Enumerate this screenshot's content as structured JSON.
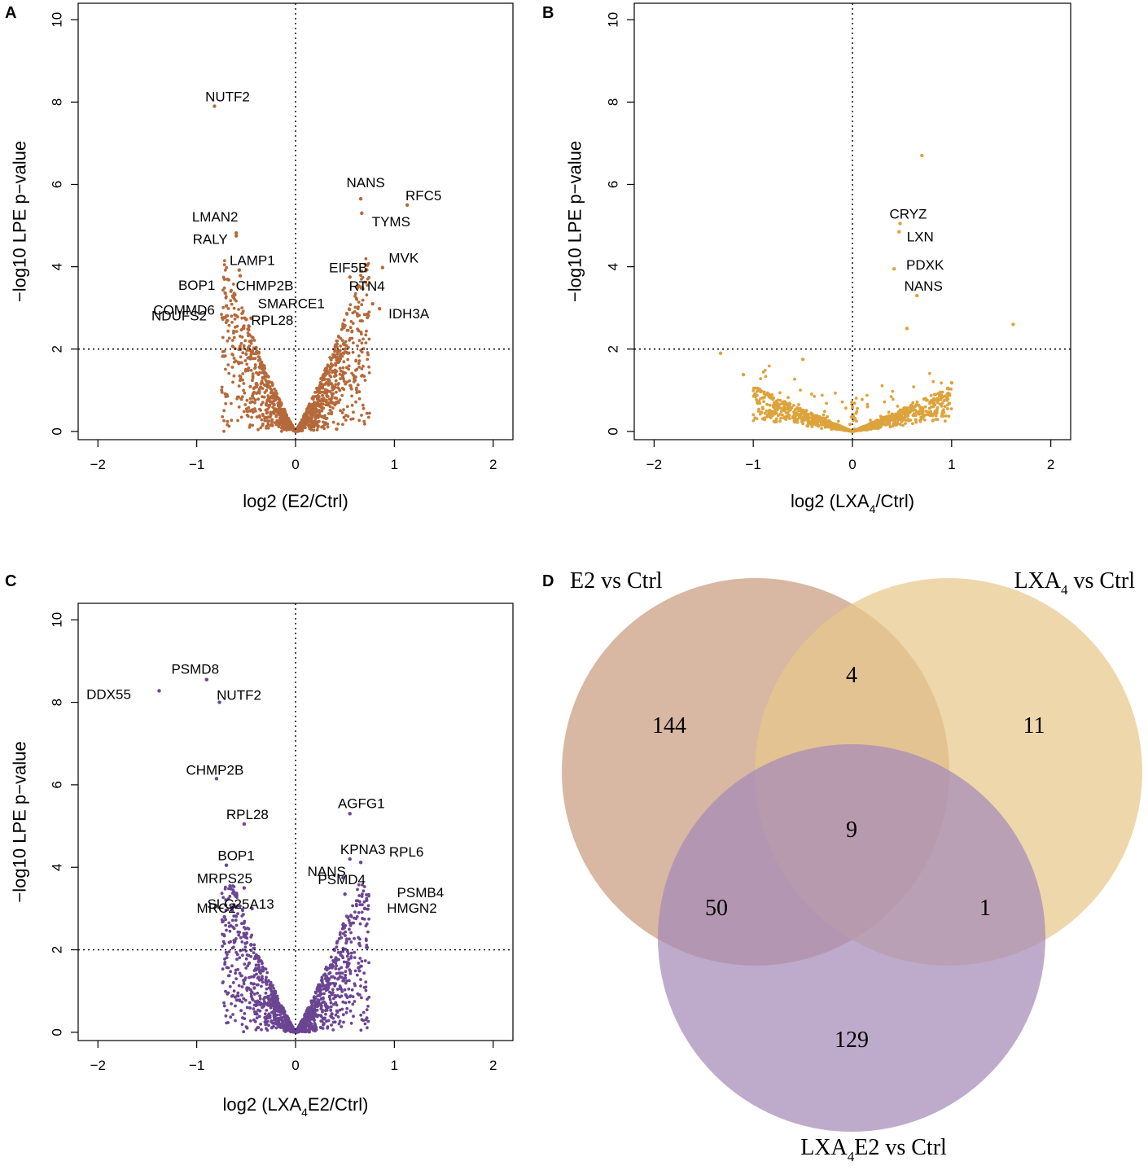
{
  "panels": [
    {
      "id": "A",
      "letter": "A",
      "xlabel": "log2 (E2/Ctrl)",
      "xlabel_parts": [
        {
          "t": "log2 (E2/Ctrl)",
          "sub": false
        }
      ],
      "ylabel": "−log10 LPE p−value",
      "xticks": [
        "−2",
        "−1",
        "0",
        "1",
        "2"
      ],
      "yticks": [
        "0",
        "2",
        "4",
        "6",
        "8",
        "10"
      ],
      "color": "#B5693A",
      "labels": [
        {
          "text": "NUTF2",
          "x": -0.82,
          "y": 7.9
        },
        {
          "text": "NANS",
          "x": 0.66,
          "y": 5.65
        },
        {
          "text": "RFC5",
          "x": 1.13,
          "y": 5.5
        },
        {
          "text": "TYMS",
          "x": 0.67,
          "y": 5.3
        },
        {
          "text": "LMAN2",
          "x": -0.6,
          "y": 4.82
        },
        {
          "text": "RALY",
          "x": -0.6,
          "y": 4.75
        },
        {
          "text": "MVK",
          "x": 0.88,
          "y": 3.98
        },
        {
          "text": "EIF5B",
          "x": 0.55,
          "y": 3.75
        },
        {
          "text": "LAMP1",
          "x": -0.57,
          "y": 3.92
        },
        {
          "text": "CHMP2B",
          "x": -0.56,
          "y": 3.78
        },
        {
          "text": "BOP1",
          "x": -0.72,
          "y": 3.7
        },
        {
          "text": "SMARCE1",
          "x": -0.62,
          "y": 3.35
        },
        {
          "text": "RTN4",
          "x": 0.78,
          "y": 3.1
        },
        {
          "text": "COMMD6",
          "x": -0.7,
          "y": 3.05
        },
        {
          "text": "NDUFS2",
          "x": -0.7,
          "y": 2.8
        },
        {
          "text": "RPL28",
          "x": -0.45,
          "y": 2.75
        },
        {
          "text": "IDH3A",
          "x": 0.85,
          "y": 2.98
        }
      ]
    },
    {
      "id": "B",
      "letter": "B",
      "xlabel": "log2 (LXA4/Ctrl)",
      "xlabel_parts": [
        {
          "t": "log2 (LXA",
          "sub": false
        },
        {
          "t": "4",
          "sub": true
        },
        {
          "t": "/Ctrl)",
          "sub": false
        }
      ],
      "ylabel": "−log10 LPE p−value",
      "xticks": [
        "−2",
        "−1",
        "0",
        "1",
        "2"
      ],
      "yticks": [
        "0",
        "2",
        "4",
        "6",
        "8",
        "10"
      ],
      "color": "#DDA33C",
      "labels": [
        {
          "text": "CRYZ",
          "x": 0.48,
          "y": 5.05
        },
        {
          "text": "LXN",
          "x": 0.47,
          "y": 4.85
        },
        {
          "text": "PDXK",
          "x": 0.42,
          "y": 3.95
        },
        {
          "text": "NANS",
          "x": 0.65,
          "y": 3.3
        }
      ]
    },
    {
      "id": "C",
      "letter": "C",
      "xlabel": "log2 (LXA4E2/Ctrl)",
      "xlabel_parts": [
        {
          "t": "log2 (LXA",
          "sub": false
        },
        {
          "t": "4",
          "sub": true
        },
        {
          "t": "E2/Ctrl)",
          "sub": false
        }
      ],
      "ylabel": "−log10 LPE p−value",
      "xticks": [
        "−2",
        "−1",
        "0",
        "1",
        "2"
      ],
      "yticks": [
        "0",
        "2",
        "4",
        "6",
        "8",
        "10"
      ],
      "color": "#6B4592",
      "labels": [
        {
          "text": "PSMD8",
          "x": -0.9,
          "y": 8.55
        },
        {
          "text": "DDX55",
          "x": -1.38,
          "y": 8.28
        },
        {
          "text": "NUTF2",
          "x": -0.77,
          "y": 8.0
        },
        {
          "text": "CHMP2B",
          "x": -0.8,
          "y": 6.15
        },
        {
          "text": "AGFG1",
          "x": 0.55,
          "y": 5.3
        },
        {
          "text": "RPL28",
          "x": -0.52,
          "y": 5.05
        },
        {
          "text": "KPNA3",
          "x": 0.55,
          "y": 4.2
        },
        {
          "text": "BOP1",
          "x": -0.7,
          "y": 4.05
        },
        {
          "text": "NANS",
          "x": 0.48,
          "y": 3.75
        },
        {
          "text": "RPL6",
          "x": 0.66,
          "y": 4.12
        },
        {
          "text": "MRPS25",
          "x": -0.52,
          "y": 3.5
        },
        {
          "text": "PSMD4",
          "x": 0.5,
          "y": 3.35
        },
        {
          "text": "PSMB4",
          "x": 0.72,
          "y": 3.2
        },
        {
          "text": "SLC25A13",
          "x": -0.44,
          "y": 3.0
        },
        {
          "text": "HMGN2",
          "x": 0.7,
          "y": 3.0
        },
        {
          "text": "MRC2",
          "x": -0.72,
          "y": 2.8
        }
      ]
    }
  ],
  "venn": {
    "letter": "D",
    "sets": [
      {
        "name": "E2 vs Ctrl",
        "parts": [
          {
            "t": "E2 vs Ctrl",
            "sub": false
          }
        ],
        "color": "#C99B7F"
      },
      {
        "name": "LXA4 vs Ctrl",
        "parts": [
          {
            "t": "LXA",
            "sub": false
          },
          {
            "t": "4",
            "sub": true
          },
          {
            "t": " vs Ctrl",
            "sub": false
          }
        ],
        "color": "#E9C78C"
      },
      {
        "name": "LXA4E2 vs Ctrl",
        "parts": [
          {
            "t": "LXA",
            "sub": false
          },
          {
            "t": "4",
            "sub": true
          },
          {
            "t": "E2 vs Ctrl",
            "sub": false
          }
        ],
        "color": "#A58BB8"
      }
    ],
    "counts": {
      "e2_only": "144",
      "lxa4_only": "11",
      "lxa4e2_only": "129",
      "e2_lxa4": "4",
      "e2_lxa4e2": "50",
      "lxa4_lxa4e2": "1",
      "all_three": "9"
    }
  },
  "chart_data": [
    {
      "type": "scatter",
      "title": "A",
      "xlabel": "log2 (E2/Ctrl)",
      "ylabel": "−log10 LPE p−value",
      "xlim": [
        -2.2,
        2.2
      ],
      "ylim": [
        -0.2,
        10.4
      ],
      "threshold_y": 2,
      "threshold_x": 0,
      "annotated_points": [
        {
          "gene": "NUTF2",
          "x": -0.82,
          "y": 7.9
        },
        {
          "gene": "NANS",
          "x": 0.66,
          "y": 5.65
        },
        {
          "gene": "RFC5",
          "x": 1.13,
          "y": 5.5
        },
        {
          "gene": "TYMS",
          "x": 0.67,
          "y": 5.3
        },
        {
          "gene": "LMAN2",
          "x": -0.6,
          "y": 4.82
        },
        {
          "gene": "RALY",
          "x": -0.6,
          "y": 4.75
        },
        {
          "gene": "MVK",
          "x": 0.88,
          "y": 3.98
        },
        {
          "gene": "EIF5B",
          "x": 0.55,
          "y": 3.75
        },
        {
          "gene": "LAMP1",
          "x": -0.57,
          "y": 3.92
        },
        {
          "gene": "CHMP2B",
          "x": -0.56,
          "y": 3.78
        },
        {
          "gene": "BOP1",
          "x": -0.72,
          "y": 3.7
        },
        {
          "gene": "SMARCE1",
          "x": -0.62,
          "y": 3.35
        },
        {
          "gene": "RTN4",
          "x": 0.78,
          "y": 3.1
        },
        {
          "gene": "COMMD6",
          "x": -0.7,
          "y": 3.05
        },
        {
          "gene": "NDUFS2",
          "x": -0.7,
          "y": 2.8
        },
        {
          "gene": "RPL28",
          "x": -0.45,
          "y": 2.75
        },
        {
          "gene": "IDH3A",
          "x": 0.85,
          "y": 2.98
        }
      ],
      "background_cloud": {
        "spread_x": 0.75,
        "max_y": 4.2,
        "n": 1400,
        "seed": 11
      }
    },
    {
      "type": "scatter",
      "title": "B",
      "xlabel": "log2 (LXA4/Ctrl)",
      "ylabel": "−log10 LPE p−value",
      "xlim": [
        -2.2,
        2.2
      ],
      "ylim": [
        -0.2,
        10.4
      ],
      "threshold_y": 2,
      "threshold_x": 0,
      "annotated_points": [
        {
          "gene": "CRYZ",
          "x": 0.48,
          "y": 5.05
        },
        {
          "gene": "LXN",
          "x": 0.47,
          "y": 4.85
        },
        {
          "gene": "PDXK",
          "x": 0.42,
          "y": 3.95
        },
        {
          "gene": "NANS",
          "x": 0.65,
          "y": 3.3
        }
      ],
      "extra_points": [
        {
          "x": 0.7,
          "y": 6.7
        },
        {
          "x": 1.62,
          "y": 2.6
        },
        {
          "x": -1.33,
          "y": 1.9
        },
        {
          "x": -1.1,
          "y": 1.38
        },
        {
          "x": 0.55,
          "y": 2.5
        },
        {
          "x": -0.5,
          "y": 1.75
        },
        {
          "x": 1.0,
          "y": 1.18
        }
      ],
      "background_cloud": {
        "spread_x": 1.0,
        "max_y": 2.2,
        "n": 1400,
        "seed": 23,
        "flat": true
      }
    },
    {
      "type": "scatter",
      "title": "C",
      "xlabel": "log2 (LXA4E2/Ctrl)",
      "ylabel": "−log10 LPE p−value",
      "xlim": [
        -2.2,
        2.2
      ],
      "ylim": [
        -0.2,
        10.4
      ],
      "threshold_y": 2,
      "threshold_x": 0,
      "annotated_points": [
        {
          "gene": "PSMD8",
          "x": -0.9,
          "y": 8.55
        },
        {
          "gene": "DDX55",
          "x": -1.38,
          "y": 8.28
        },
        {
          "gene": "NUTF2",
          "x": -0.77,
          "y": 8.0
        },
        {
          "gene": "CHMP2B",
          "x": -0.8,
          "y": 6.15
        },
        {
          "gene": "AGFG1",
          "x": 0.55,
          "y": 5.3
        },
        {
          "gene": "RPL28",
          "x": -0.52,
          "y": 5.05
        },
        {
          "gene": "KPNA3",
          "x": 0.55,
          "y": 4.2
        },
        {
          "gene": "BOP1",
          "x": -0.7,
          "y": 4.05
        },
        {
          "gene": "NANS",
          "x": 0.48,
          "y": 3.75
        },
        {
          "gene": "RPL6",
          "x": 0.66,
          "y": 4.12
        },
        {
          "gene": "MRPS25",
          "x": -0.52,
          "y": 3.5
        },
        {
          "gene": "PSMD4",
          "x": 0.5,
          "y": 3.35
        },
        {
          "gene": "PSMB4",
          "x": 0.72,
          "y": 3.2
        },
        {
          "gene": "SLC25A13",
          "x": -0.44,
          "y": 3.0
        },
        {
          "gene": "HMGN2",
          "x": 0.7,
          "y": 3.0
        },
        {
          "gene": "MRC2",
          "x": -0.72,
          "y": 2.8
        }
      ],
      "background_cloud": {
        "spread_x": 0.75,
        "max_y": 3.6,
        "n": 1400,
        "seed": 37
      }
    },
    {
      "type": "venn",
      "title": "D",
      "sets": [
        "E2 vs Ctrl",
        "LXA4 vs Ctrl",
        "LXA4E2 vs Ctrl"
      ],
      "regions": {
        "E2 only": 144,
        "LXA4 only": 11,
        "LXA4E2 only": 129,
        "E2 & LXA4": 4,
        "E2 & LXA4E2": 50,
        "LXA4 & LXA4E2": 1,
        "all three": 9
      }
    }
  ]
}
